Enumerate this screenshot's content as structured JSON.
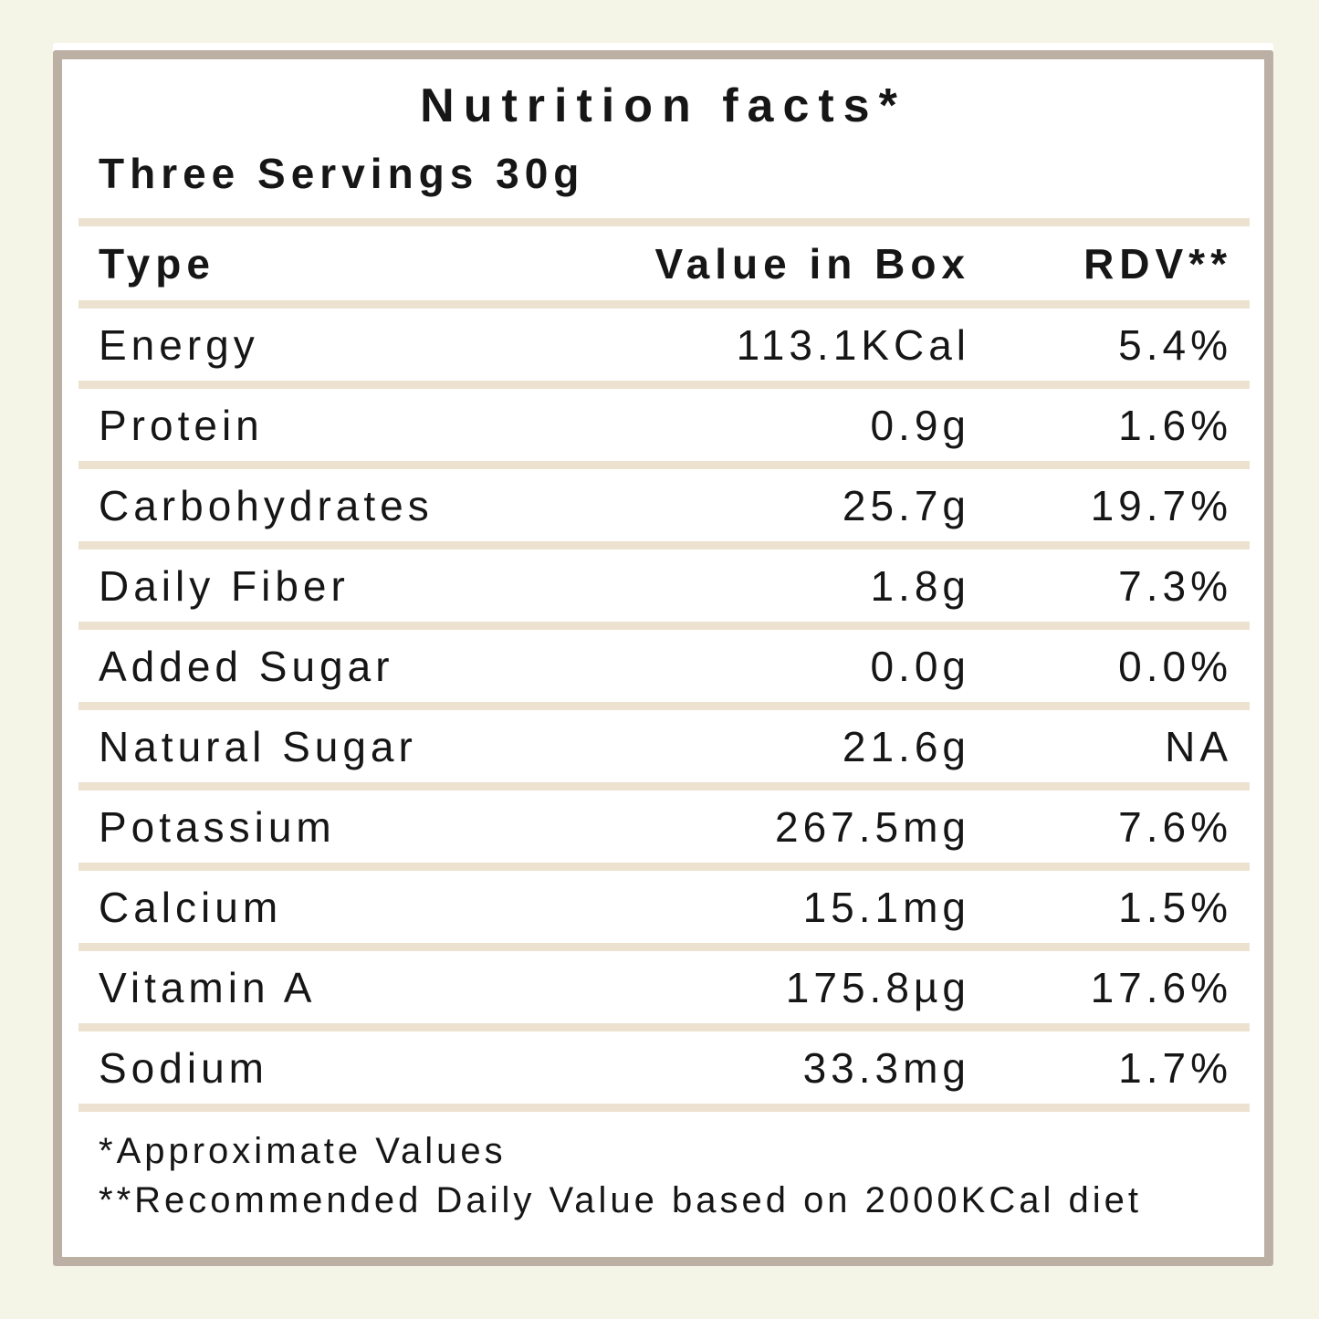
{
  "label": {
    "title": "Nutrition facts*",
    "servings": "Three Servings 30g",
    "columns": [
      "Type",
      "Value in Box",
      "RDV**"
    ],
    "rows": [
      {
        "type": "Energy",
        "value": "113.1KCal",
        "rdv": "5.4%"
      },
      {
        "type": "Protein",
        "value": "0.9g",
        "rdv": "1.6%"
      },
      {
        "type": "Carbohydrates",
        "value": "25.7g",
        "rdv": "19.7%"
      },
      {
        "type": "Daily Fiber",
        "value": "1.8g",
        "rdv": "7.3%"
      },
      {
        "type": "Added Sugar",
        "value": "0.0g",
        "rdv": "0.0%"
      },
      {
        "type": "Natural Sugar",
        "value": "21.6g",
        "rdv": "NA"
      },
      {
        "type": "Potassium",
        "value": "267.5mg",
        "rdv": "7.6%"
      },
      {
        "type": "Calcium",
        "value": "15.1mg",
        "rdv": "1.5%"
      },
      {
        "type": "Vitamin A",
        "value": "175.8µg",
        "rdv": "17.6%"
      },
      {
        "type": "Sodium",
        "value": "33.3mg",
        "rdv": "1.7%"
      }
    ],
    "footnotes": [
      "*Approximate Values",
      "**Recommended Daily Value based on 2000KCal diet"
    ],
    "colors": {
      "page_background": "#f4f5e7",
      "card_background": "#ffffff",
      "card_border": "#bcb0a4",
      "divider": "#ece2cf",
      "text": "#161616"
    }
  }
}
